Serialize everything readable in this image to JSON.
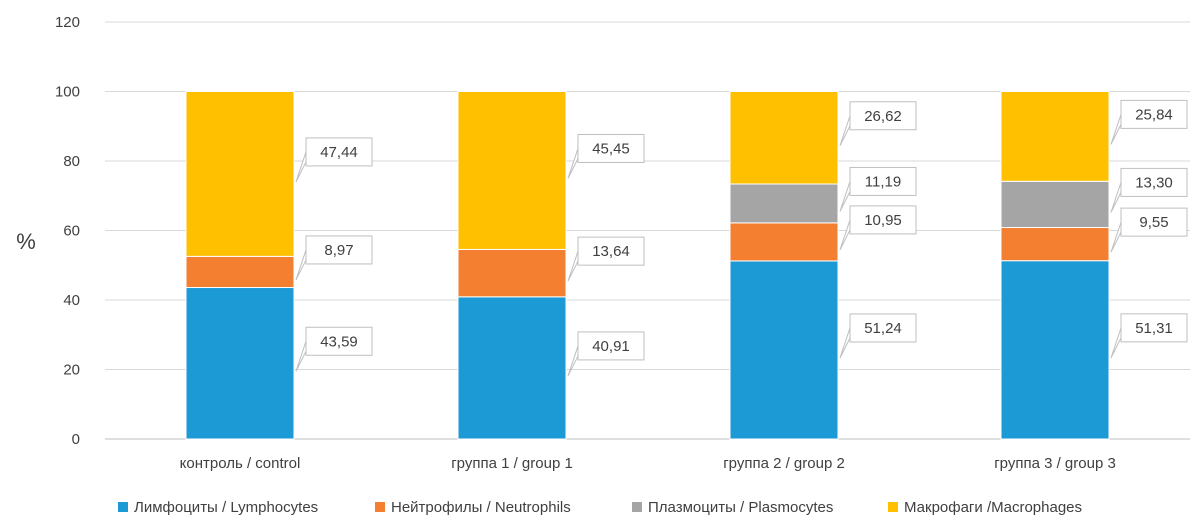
{
  "chart_data": {
    "type": "bar",
    "stacked": true,
    "categories": [
      "контроль / control",
      "группа 1 / group 1",
      "группа 2 / group 2",
      "группа 3 / group 3"
    ],
    "series": [
      {
        "name": "Лимфоциты / Lymphocytes",
        "color": "#1b9ad6",
        "values": [
          43.59,
          40.91,
          51.24,
          51.31
        ],
        "labels": [
          "43,59",
          "40,91",
          "51,24",
          "51,31"
        ]
      },
      {
        "name": "Нейтрофилы / Neutrophils",
        "color": "#f47f30",
        "values": [
          8.97,
          13.64,
          10.95,
          9.55
        ],
        "labels": [
          "8,97",
          "13,64",
          "10,95",
          "9,55"
        ]
      },
      {
        "name": "Плазмоциты / Plasmocytes",
        "color": "#a5a5a5",
        "values": [
          0,
          0,
          11.19,
          13.3
        ],
        "labels": [
          "",
          "",
          "11,19",
          "13,30"
        ]
      },
      {
        "name": "Макрофаги /Macrophages",
        "color": "#ffc000",
        "values": [
          47.44,
          45.45,
          26.62,
          25.84
        ],
        "labels": [
          "47,44",
          "45,45",
          "26,62",
          "25,84"
        ]
      }
    ],
    "ylabel": "%",
    "xlabel": "",
    "ylim": [
      0,
      120
    ],
    "yticks": [
      0,
      20,
      40,
      60,
      80,
      100,
      120
    ],
    "grid": true,
    "legend": "bottom"
  }
}
